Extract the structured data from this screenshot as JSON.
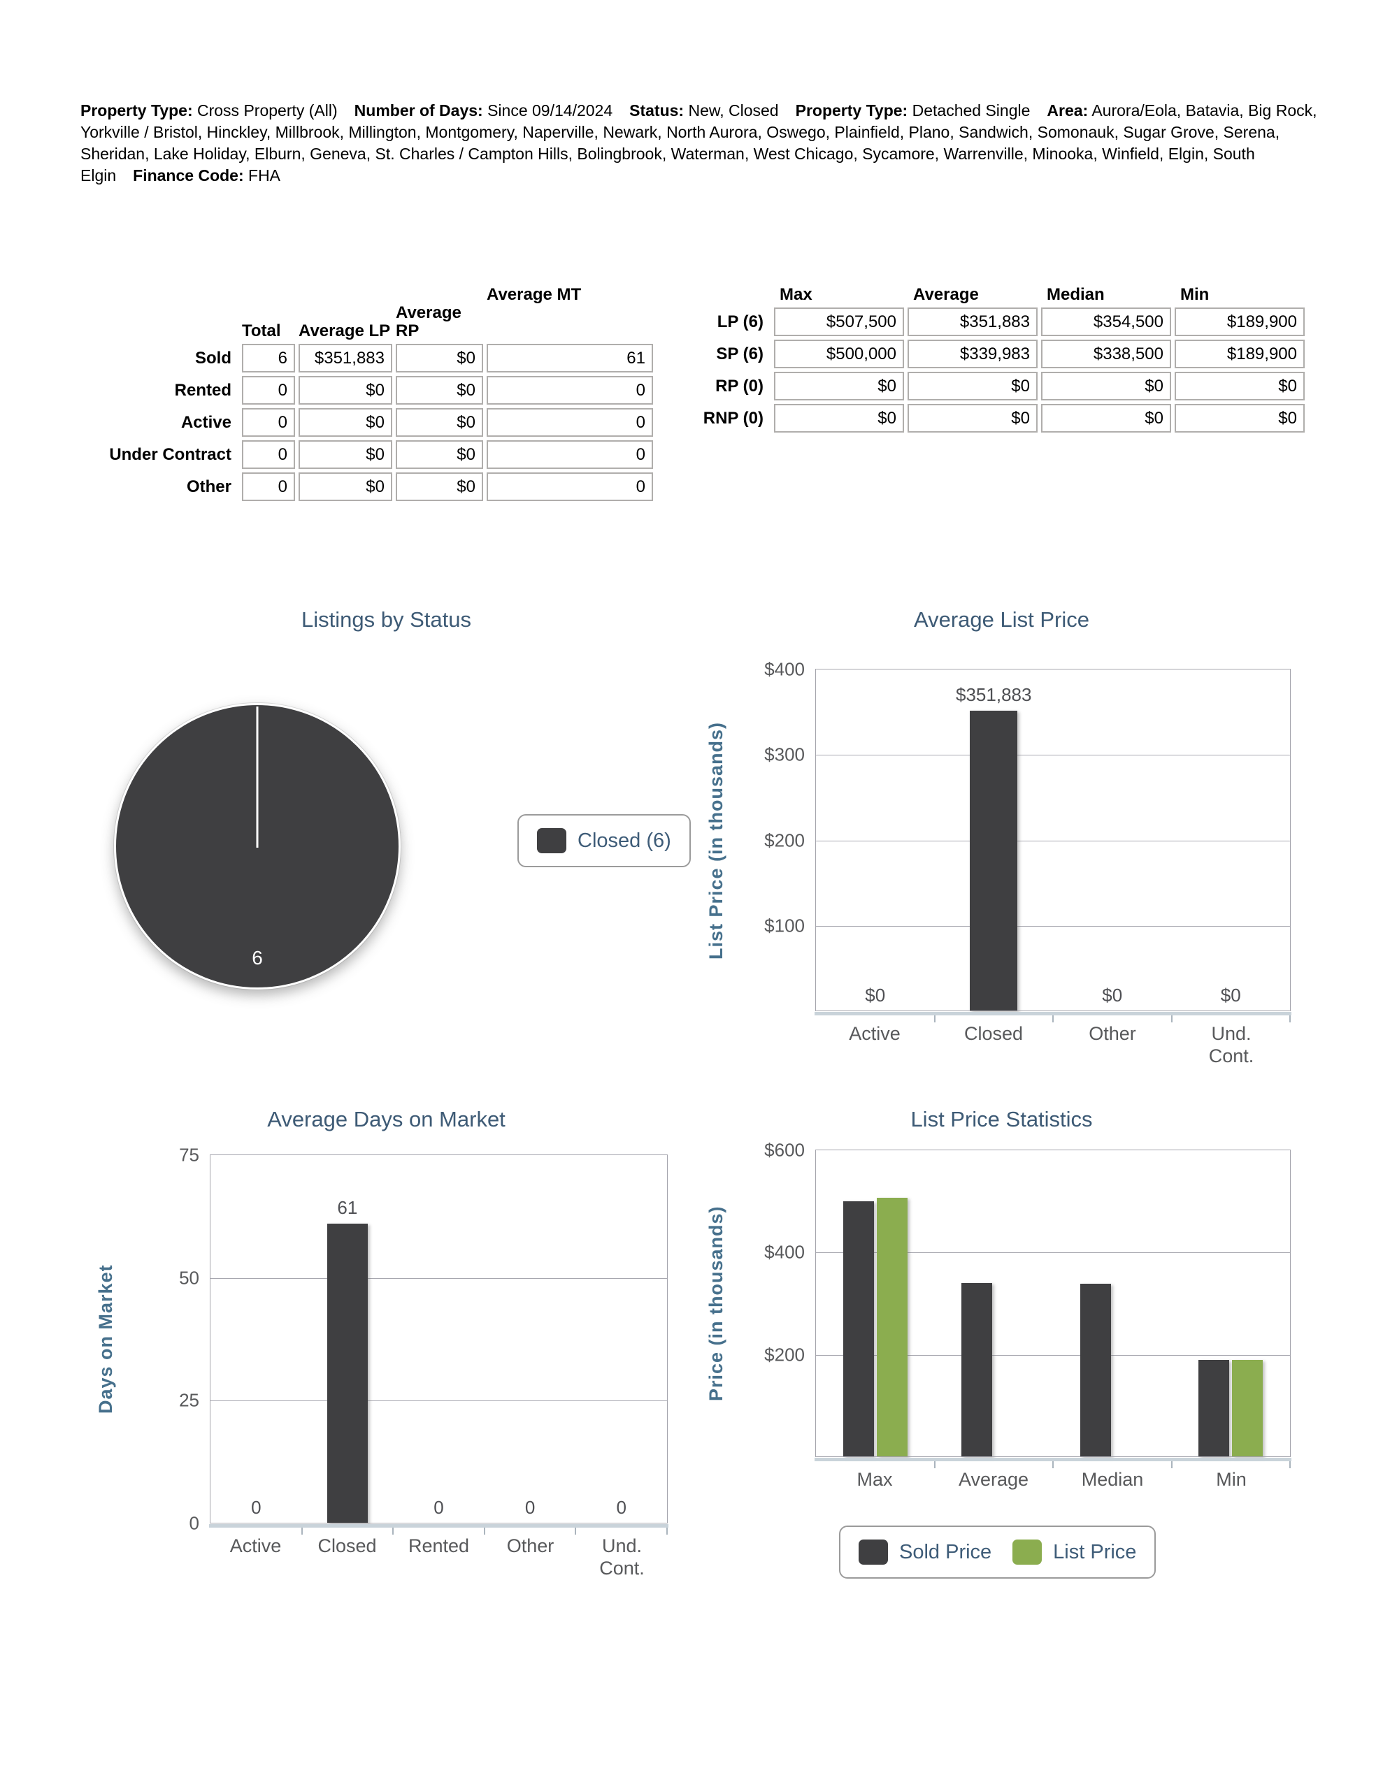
{
  "header": {
    "parts": [
      {
        "label": "Property Type:",
        "value": "Cross Property (All)"
      },
      {
        "label": "Number of Days:",
        "value": "Since 09/14/2024"
      },
      {
        "label": "Status:",
        "value": "New, Closed"
      },
      {
        "label": "Property Type:",
        "value": "Detached Single"
      },
      {
        "label": "Area:",
        "value": "Aurora/Eola, Batavia, Big Rock, Yorkville / Bristol, Hinckley, Millbrook, Millington, Montgomery, Naperville, Newark, North Aurora, Oswego, Plainfield, Plano, Sandwich, Somonauk, Sugar Grove, Serena, Sheridan, Lake Holiday, Elburn, Geneva, St. Charles / Campton Hills, Bolingbrook, Waterman, West Chicago, Sycamore, Warrenville, Minooka, Winfield, Elgin, South Elgin"
      },
      {
        "label": "Finance Code:",
        "value": "FHA"
      }
    ]
  },
  "status_table": {
    "headers": [
      "Total",
      "Average LP",
      "Average RP",
      "Average MT"
    ],
    "rows": [
      {
        "label": "Sold",
        "cells": [
          "6",
          "$351,883",
          "$0",
          "61"
        ]
      },
      {
        "label": "Rented",
        "cells": [
          "0",
          "$0",
          "$0",
          "0"
        ]
      },
      {
        "label": "Active",
        "cells": [
          "0",
          "$0",
          "$0",
          "0"
        ]
      },
      {
        "label": "Under Contract",
        "cells": [
          "0",
          "$0",
          "$0",
          "0"
        ]
      },
      {
        "label": "Other",
        "cells": [
          "0",
          "$0",
          "$0",
          "0"
        ]
      }
    ]
  },
  "price_table": {
    "headers": [
      "Max",
      "Average",
      "Median",
      "Min"
    ],
    "rows": [
      {
        "label": "LP (6)",
        "cells": [
          "$507,500",
          "$351,883",
          "$354,500",
          "$189,900"
        ]
      },
      {
        "label": "SP (6)",
        "cells": [
          "$500,000",
          "$339,983",
          "$338,500",
          "$189,900"
        ]
      },
      {
        "label": "RP (0)",
        "cells": [
          "$0",
          "$0",
          "$0",
          "$0"
        ]
      },
      {
        "label": "RNP (0)",
        "cells": [
          "$0",
          "$0",
          "$0",
          "$0"
        ]
      }
    ]
  },
  "colors": {
    "bar_dark": "#3f3f41",
    "bar_green": "#8bad4f",
    "title_blue": "#3d5a75",
    "axis_title_blue": "#46708c",
    "tick_gray": "#58595b"
  },
  "chart_data": [
    {
      "type": "pie",
      "title": "Listings by Status",
      "labels": [
        "Closed"
      ],
      "values": [
        6
      ],
      "slice_label": "6",
      "legend": [
        {
          "name": "Closed (6)",
          "color": "#3f3f41"
        }
      ]
    },
    {
      "type": "bar",
      "title": "Average List Price",
      "ylabel": "List Price (in thousands)",
      "categories": [
        "Active",
        "Closed",
        "Other",
        "Und. Cont."
      ],
      "values": [
        0,
        351883,
        0,
        0
      ],
      "value_labels": [
        "$0",
        "$351,883",
        "$0",
        "$0"
      ],
      "yticks": [
        "$400",
        "$300",
        "$200",
        "$100"
      ],
      "ymax": 400000,
      "ylim": [
        0,
        400000
      ],
      "grid": true
    },
    {
      "type": "bar",
      "title": "Average Days on Market",
      "ylabel": "Days on Market",
      "categories": [
        "Active",
        "Closed",
        "Rented",
        "Other",
        "Und. Cont."
      ],
      "values": [
        0,
        61,
        0,
        0,
        0
      ],
      "value_labels": [
        "0",
        "61",
        "0",
        "0",
        "0"
      ],
      "yticks": [
        "75",
        "50",
        "25",
        "0"
      ],
      "ymax": 75,
      "ylim": [
        0,
        75
      ],
      "grid": true
    },
    {
      "type": "bar",
      "title": "List Price Statistics",
      "ylabel": "Price (in thousands)",
      "categories": [
        "Max",
        "Average",
        "Median",
        "Min"
      ],
      "series": [
        {
          "name": "Sold Price",
          "color": "#3f3f41",
          "values": [
            500000,
            339983,
            338500,
            189900
          ]
        },
        {
          "name": "List Price",
          "color": "#8bad4f",
          "values": [
            507500,
            null,
            null,
            189900
          ]
        }
      ],
      "yticks": [
        "$600",
        "$400",
        "$200"
      ],
      "ymax": 600000,
      "ylim": [
        0,
        600000
      ],
      "grid": true,
      "note": "List Price bars are not rendered for Average and Median in the source image"
    }
  ]
}
